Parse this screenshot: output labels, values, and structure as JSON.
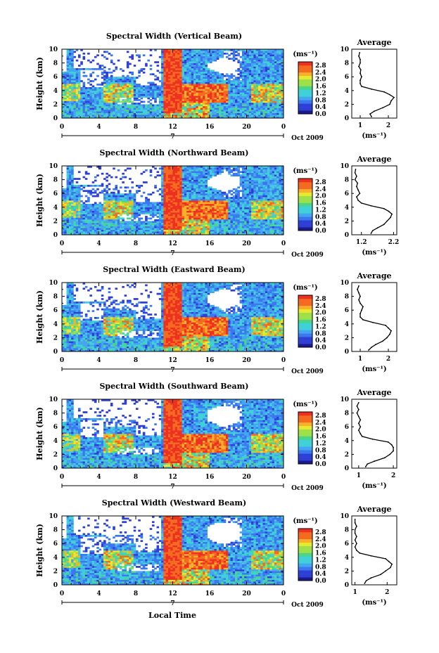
{
  "colors": {
    "scale": [
      "#1a1a8c",
      "#2e3fd6",
      "#3a78ee",
      "#44a6f2",
      "#40d0d8",
      "#4ad68a",
      "#9ee04a",
      "#e8e830",
      "#f6b02a",
      "#f46a20",
      "#ee3020"
    ],
    "background": "#ffffff"
  },
  "common": {
    "ylabel": "Height (km)",
    "xlabel": "Local Time",
    "unit": "(ms⁻¹)",
    "date_label": "Oct 2009",
    "day_label": "7",
    "average_title": "Average",
    "x_ticks": [
      "0",
      "4",
      "8",
      "12",
      "16",
      "20",
      "0"
    ],
    "y_ticks": [
      "0",
      "2",
      "4",
      "6",
      "8",
      "10"
    ],
    "colorbar_ticks": [
      "0.0",
      "0.4",
      "0.8",
      "1.2",
      "1.6",
      "2.0",
      "2.4",
      "2.8"
    ]
  },
  "chart_data": [
    {
      "type": "heatmap",
      "title": "Spectral Width (Vertical Beam)",
      "xlabel": "",
      "ylabel": "Height (km)",
      "xlim": [
        0,
        24
      ],
      "ylim": [
        0,
        10
      ],
      "clim": [
        0,
        3.0
      ],
      "x_tick_values": [
        0,
        4,
        8,
        12,
        16,
        20,
        24
      ],
      "profile": {
        "title": "Average",
        "xlabel": "(ms⁻¹)",
        "xlim": [
          0.7,
          2.3
        ],
        "x_ticks": [
          "1",
          "2"
        ],
        "x_tick_values": [
          1,
          2
        ],
        "heights": [
          0.2,
          0.6,
          1.0,
          1.5,
          2.0,
          2.5,
          3.0,
          3.4,
          3.8,
          4.2,
          4.6,
          5.0,
          5.5,
          6.0,
          6.5,
          7.0,
          7.5,
          8.0,
          8.5,
          9.0,
          9.5
        ],
        "values": [
          1.4,
          1.35,
          1.5,
          1.8,
          2.05,
          2.1,
          2.2,
          2.05,
          1.85,
          1.4,
          1.05,
          1.0,
          1.0,
          1.05,
          1.0,
          1.02,
          0.95,
          1.0,
          1.0,
          0.95,
          0.98
        ]
      }
    },
    {
      "type": "heatmap",
      "title": "Spectral Width (Northward Beam)",
      "xlabel": "",
      "ylabel": "Height (km)",
      "xlim": [
        0,
        24
      ],
      "ylim": [
        0,
        10
      ],
      "clim": [
        0,
        3.0
      ],
      "x_tick_values": [
        0,
        4,
        8,
        12,
        16,
        20,
        24
      ],
      "profile": {
        "title": "Average",
        "xlabel": "(ms⁻¹)",
        "xlim": [
          0.9,
          2.3
        ],
        "x_ticks": [
          "1.2",
          "2.2"
        ],
        "x_tick_values": [
          1.2,
          2.2
        ],
        "heights": [
          0.2,
          0.6,
          1.0,
          1.5,
          2.0,
          2.5,
          3.0,
          3.4,
          3.8,
          4.2,
          4.6,
          5.0,
          5.5,
          6.0,
          6.5,
          7.0,
          7.5,
          8.0,
          8.5,
          9.0,
          9.5
        ],
        "values": [
          1.5,
          1.55,
          1.7,
          1.9,
          2.0,
          2.1,
          2.15,
          2.05,
          1.9,
          1.5,
          1.2,
          1.1,
          1.05,
          1.15,
          1.1,
          1.05,
          1.08,
          1.0,
          1.05,
          1.0,
          1.02
        ]
      }
    },
    {
      "type": "heatmap",
      "title": "Spectral Width (Eastward Beam)",
      "xlabel": "",
      "ylabel": "Height (km)",
      "xlim": [
        0,
        24
      ],
      "ylim": [
        0,
        10
      ],
      "clim": [
        0,
        3.0
      ],
      "x_tick_values": [
        0,
        4,
        8,
        12,
        16,
        20,
        24
      ],
      "profile": {
        "title": "Average",
        "xlabel": "(ms⁻¹)",
        "xlim": [
          0.7,
          2.3
        ],
        "x_ticks": [
          "1",
          "2"
        ],
        "x_tick_values": [
          1,
          2
        ],
        "heights": [
          0.2,
          0.6,
          1.0,
          1.5,
          2.0,
          2.5,
          3.0,
          3.4,
          3.8,
          4.2,
          4.6,
          5.0,
          5.5,
          6.0,
          6.5,
          7.0,
          7.5,
          8.0,
          8.5,
          9.0,
          9.5
        ],
        "values": [
          1.3,
          1.4,
          1.55,
          1.8,
          1.95,
          2.05,
          2.1,
          2.0,
          1.9,
          1.45,
          1.1,
          1.0,
          1.0,
          1.05,
          1.1,
          1.0,
          0.95,
          1.0,
          0.95,
          0.9,
          0.95
        ]
      }
    },
    {
      "type": "heatmap",
      "title": "Spectral Width (Southward Beam)",
      "xlabel": "",
      "ylabel": "Height (km)",
      "xlim": [
        0,
        24
      ],
      "ylim": [
        0,
        10
      ],
      "clim": [
        0,
        3.0
      ],
      "x_tick_values": [
        0,
        4,
        8,
        12,
        16,
        20,
        24
      ],
      "profile": {
        "title": "Average",
        "xlabel": "(ms⁻¹)",
        "xlim": [
          0.8,
          2.1
        ],
        "x_ticks": [
          "1",
          "2"
        ],
        "x_tick_values": [
          1,
          2
        ],
        "heights": [
          0.2,
          0.6,
          1.0,
          1.5,
          2.0,
          2.5,
          3.0,
          3.4,
          3.8,
          4.2,
          4.6,
          5.0,
          5.5,
          6.0,
          6.5,
          7.0,
          7.5,
          8.0,
          8.5,
          9.0,
          9.5
        ],
        "values": [
          1.2,
          1.25,
          1.45,
          1.75,
          1.9,
          2.0,
          2.0,
          1.95,
          1.85,
          1.4,
          1.1,
          1.05,
          1.0,
          1.05,
          1.0,
          1.05,
          1.0,
          0.95,
          1.0,
          0.95,
          1.0
        ]
      }
    },
    {
      "type": "heatmap",
      "title": "Spectral Width (Westward Beam)",
      "xlabel": "Local Time",
      "ylabel": "Height (km)",
      "xlim": [
        0,
        24
      ],
      "ylim": [
        0,
        10
      ],
      "clim": [
        0,
        3.0
      ],
      "x_tick_values": [
        0,
        4,
        8,
        12,
        16,
        20,
        24
      ],
      "profile": {
        "title": "Average",
        "xlabel": "(ms⁻¹)",
        "xlim": [
          0.9,
          2.3
        ],
        "x_ticks": [
          "1",
          "2"
        ],
        "x_tick_values": [
          1,
          2
        ],
        "heights": [
          0.2,
          0.6,
          1.0,
          1.5,
          2.0,
          2.5,
          3.0,
          3.4,
          3.8,
          4.2,
          4.6,
          5.0,
          5.5,
          6.0,
          6.5,
          7.0,
          7.5,
          8.0,
          8.5,
          9.0,
          9.5
        ],
        "values": [
          1.3,
          1.35,
          1.5,
          1.8,
          1.95,
          2.1,
          2.15,
          2.05,
          1.95,
          1.5,
          1.15,
          1.05,
          1.0,
          1.05,
          1.0,
          1.05,
          1.0,
          1.0,
          1.05,
          1.0,
          1.0
        ]
      }
    }
  ]
}
